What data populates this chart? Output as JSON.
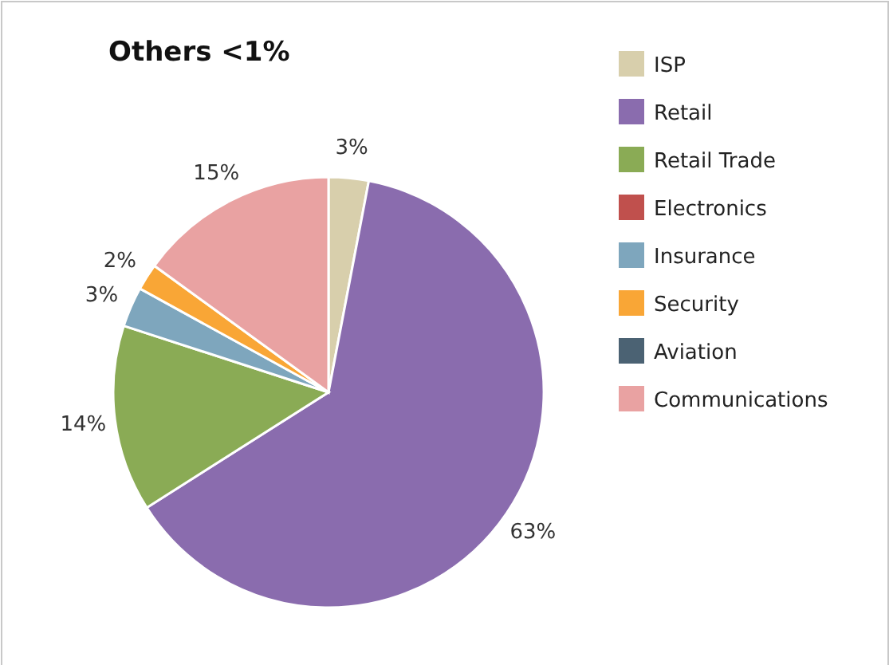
{
  "chart_data": {
    "type": "pie",
    "title": "Others <1%",
    "categories": [
      "ISP",
      "Retail",
      "Retail Trade",
      "Electronics",
      "Insurance",
      "Security",
      "Aviation",
      "Communications"
    ],
    "values": [
      3,
      63,
      14,
      0,
      3,
      2,
      0,
      15
    ],
    "value_labels": [
      "3%",
      "63%",
      "14%",
      null,
      "3%",
      "2%",
      null,
      "15%"
    ],
    "colors": [
      "#d8cfac",
      "#8a6cae",
      "#8aab55",
      "#c0504d",
      "#7ea6bd",
      "#f9a636",
      "#4b6273",
      "#e9a2a2"
    ],
    "legend": "top right"
  }
}
